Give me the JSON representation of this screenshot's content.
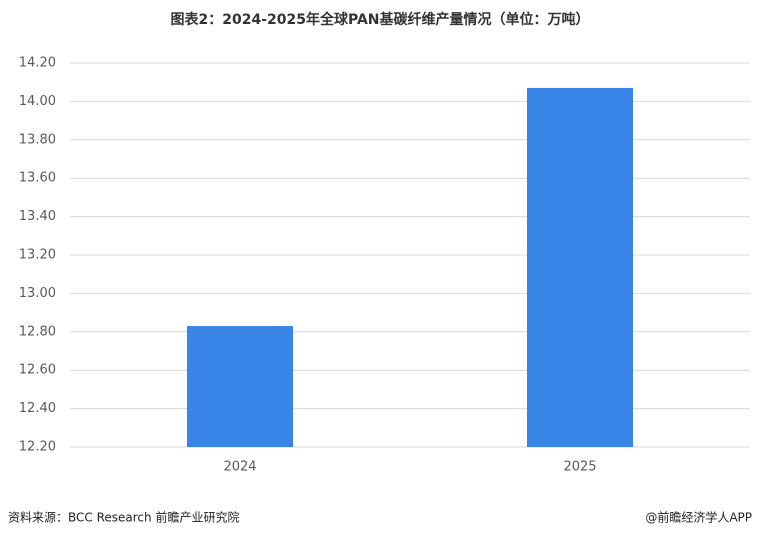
{
  "chart_data": {
    "type": "bar",
    "title": "图表2：2024-2025年全球PAN基碳纤维产量情况（单位：万吨）",
    "categories": [
      "2024",
      "2025"
    ],
    "values": [
      12.83,
      14.07
    ],
    "color": "#3a86e8",
    "ylim": [
      12.2,
      14.2
    ],
    "yticks": [
      {
        "value": 12.2,
        "label": "12.20"
      },
      {
        "value": 12.4,
        "label": "12.40"
      },
      {
        "value": 12.6,
        "label": "12.60"
      },
      {
        "value": 12.8,
        "label": "12.80"
      },
      {
        "value": 13.0,
        "label": "13.00"
      },
      {
        "value": 13.2,
        "label": "13.20"
      },
      {
        "value": 13.4,
        "label": "13.40"
      },
      {
        "value": 13.6,
        "label": "13.60"
      },
      {
        "value": 13.8,
        "label": "13.80"
      },
      {
        "value": 14.0,
        "label": "14.00"
      },
      {
        "value": 14.2,
        "label": "14.20"
      }
    ],
    "grid": true,
    "source": "资料来源：BCC Research  前瞻产业研究院",
    "credit": "@前瞻经济学人APP"
  }
}
